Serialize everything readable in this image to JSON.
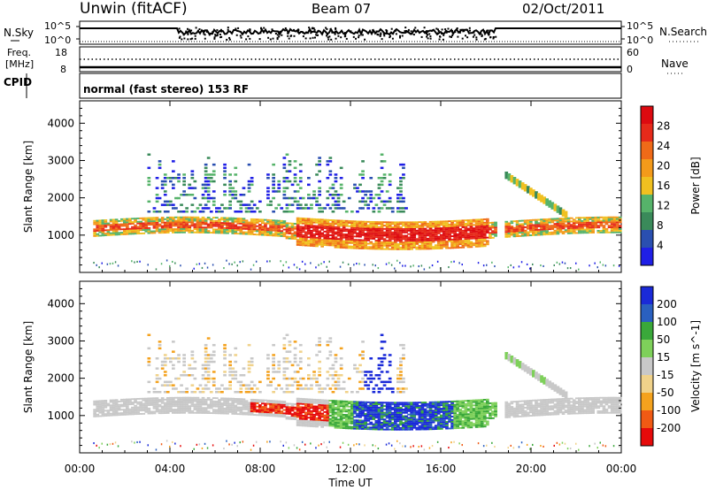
{
  "header": {
    "station": "Unwin (fitACF)",
    "beam": "Beam 07",
    "date": "02/Oct/2011"
  },
  "left_labels": {
    "nsky": "N.Sky",
    "freq_line1": "Freq.",
    "freq_line2": "[MHz]",
    "cpid": "CPID"
  },
  "right_labels": {
    "nsearch": "N.Search",
    "nave": "Nave"
  },
  "noise_panel": {
    "left_ticks": [
      "10^5",
      "10^0"
    ],
    "right_ticks": [
      "10^5",
      "10^0"
    ]
  },
  "freq_panel": {
    "left_ticks": [
      "18",
      "8"
    ],
    "right_ticks": [
      "60",
      "0"
    ]
  },
  "cpid_text": "normal (fast stereo) 153 RF",
  "colors": {
    "power_scale": [
      "#1f1fe6",
      "#2a4fb0",
      "#3a8a5a",
      "#56b36a",
      "#f0c020",
      "#f39a1a",
      "#ef6a18",
      "#e62a1a",
      "#dd0a10"
    ],
    "velocity_scale": [
      "#e60a0a",
      "#f05a14",
      "#f4a21e",
      "#f0d28a",
      "#c8c8c8",
      "#7ed05a",
      "#3aa83a",
      "#2a60c0",
      "#1a2ad8"
    ]
  },
  "chart_data": [
    {
      "type": "heatmap",
      "panel": "power",
      "xlabel": "",
      "ylabel": "Slant Range [km]",
      "x_ticks": [
        "00:00",
        "04:00",
        "08:00",
        "12:00",
        "16:00",
        "20:00",
        "00:00"
      ],
      "y_ticks": [
        "1000",
        "2000",
        "3000",
        "4000"
      ],
      "ylim": [
        0,
        4600
      ],
      "colorbar": {
        "label": "Power [dB]",
        "ticks": [
          "4",
          "8",
          "12",
          "16",
          "20",
          "24",
          "28"
        ]
      },
      "echo_regions": [
        {
          "t_start": 0.5,
          "t_end": 24,
          "range_low": 850,
          "range_high": 1350,
          "level": "high"
        },
        {
          "t_start": 9.5,
          "t_end": 18.5,
          "range_low": 700,
          "range_high": 2000,
          "level": "very-high"
        },
        {
          "t_start": 3,
          "t_end": 14,
          "range_low": 1500,
          "range_high": 3200,
          "level": "low"
        }
      ]
    },
    {
      "type": "heatmap",
      "panel": "velocity",
      "xlabel": "Time UT",
      "ylabel": "Slant Range [km]",
      "x_ticks": [
        "00:00",
        "04:00",
        "08:00",
        "12:00",
        "16:00",
        "20:00",
        "00:00"
      ],
      "y_ticks": [
        "1000",
        "2000",
        "3000",
        "4000"
      ],
      "ylim": [
        0,
        4600
      ],
      "colorbar": {
        "label": "Velocity [m s^-1]",
        "ticks": [
          "200",
          "100",
          "50",
          "15",
          "-15",
          "-50",
          "-100",
          "-200"
        ]
      },
      "echo_regions": [
        {
          "t_start": 0.5,
          "t_end": 24,
          "range_low": 850,
          "range_high": 1350,
          "level": "ground-scatter"
        },
        {
          "t_start": 7.5,
          "t_end": 11,
          "range_low": 600,
          "range_high": 1400,
          "level": "negative"
        },
        {
          "t_start": 12,
          "t_end": 16.5,
          "range_low": 900,
          "range_high": 2300,
          "level": "positive"
        }
      ]
    }
  ]
}
